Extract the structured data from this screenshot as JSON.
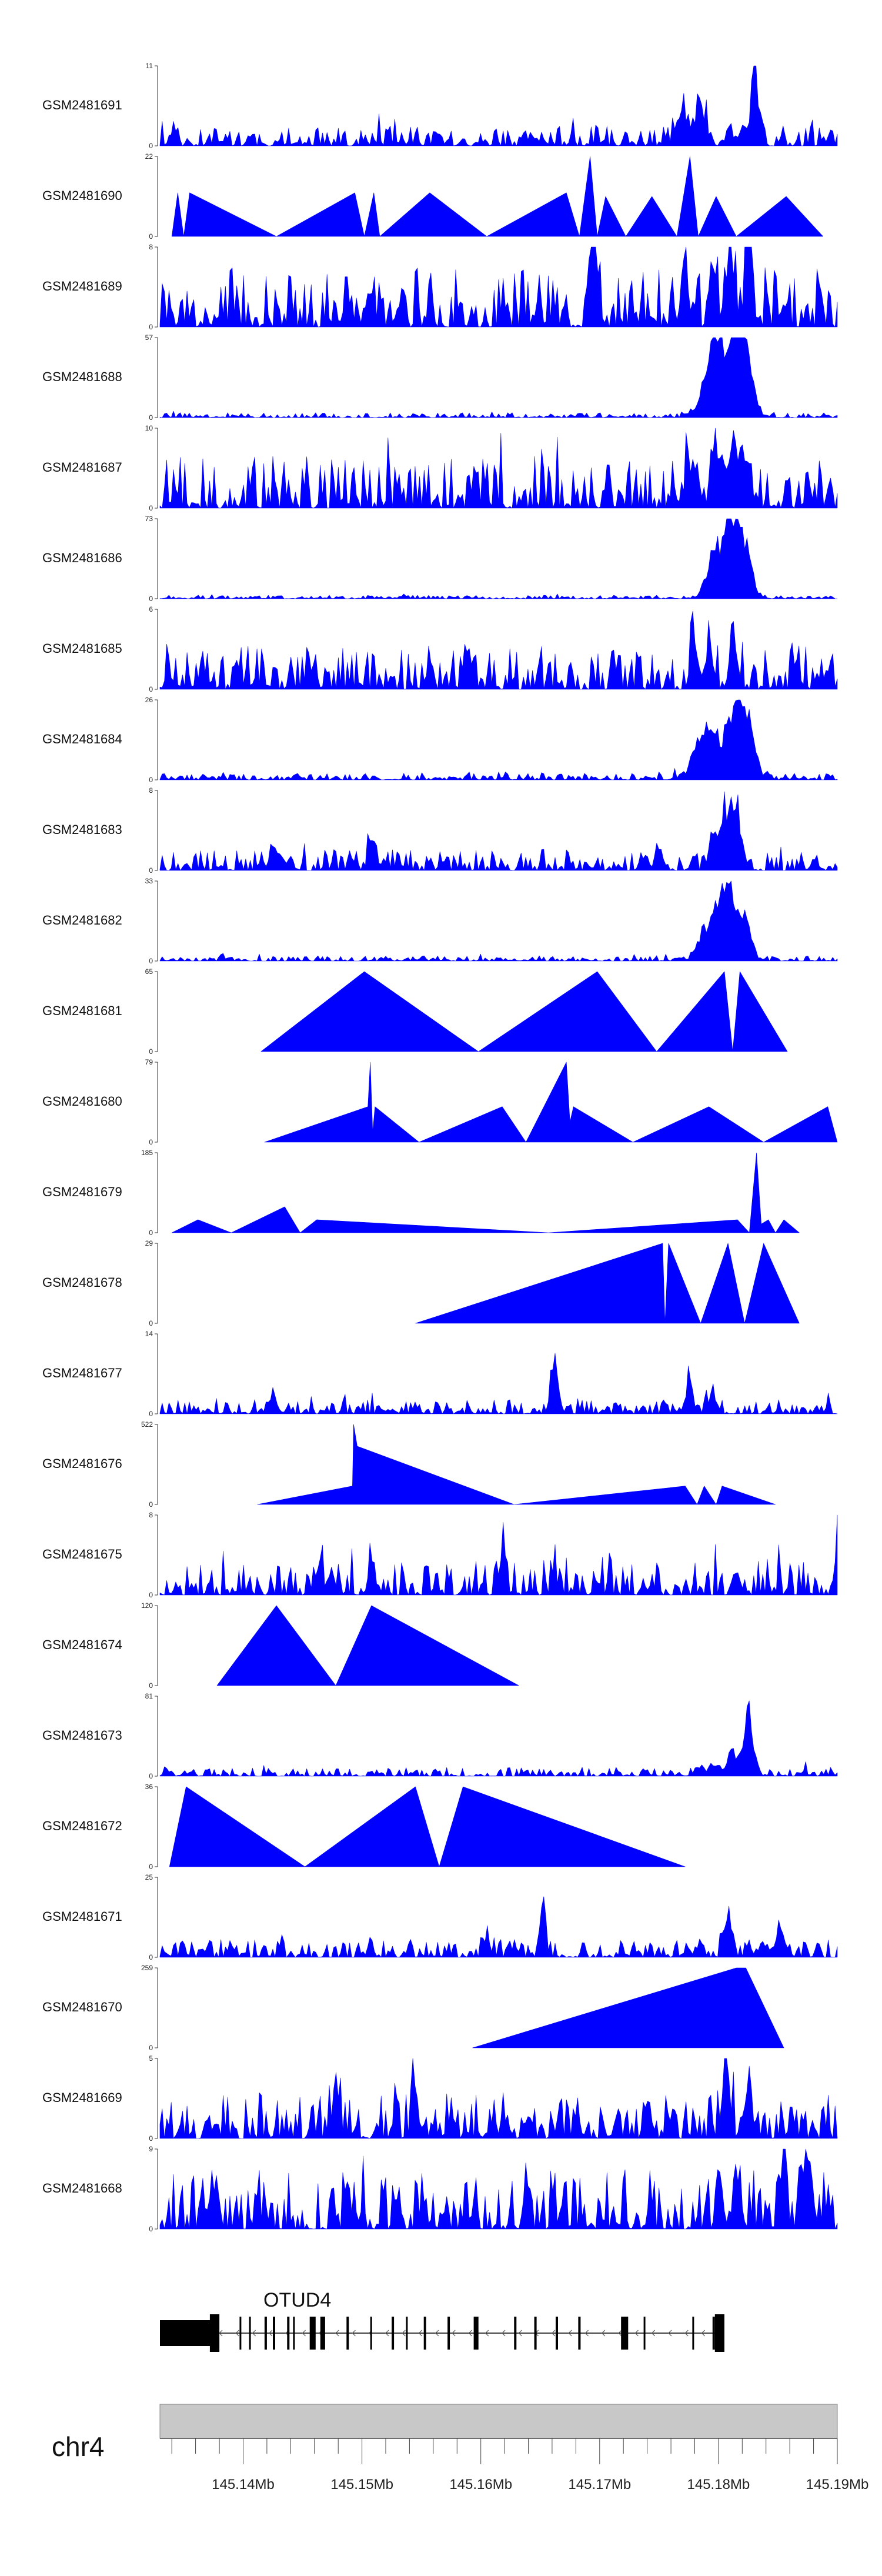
{
  "colors": {
    "signal": "#0000ff",
    "ideogram": "#c8c8c8",
    "gene": "#000000"
  },
  "chart_data": {
    "type": "area",
    "title": "",
    "xlabel": "",
    "ylabel": "",
    "chromosome": "chr4",
    "xlim_mb": [
      145.133,
      145.19
    ],
    "x_ticks_labeled": [
      {
        "mb": 145.14,
        "label": "145.14Mb"
      },
      {
        "mb": 145.15,
        "label": "145.15Mb"
      },
      {
        "mb": 145.16,
        "label": "145.16Mb"
      },
      {
        "mb": 145.17,
        "label": "145.17Mb"
      },
      {
        "mb": 145.18,
        "label": "145.18Mb"
      },
      {
        "mb": 145.19,
        "label": "145.19Mb"
      }
    ],
    "gene": {
      "name": "OTUD4",
      "strand": "-",
      "start_mb": 145.133,
      "end_mb": 145.18,
      "exons_mb": [
        [
          145.133,
          145.1375
        ],
        [
          145.1372,
          145.138
        ],
        [
          145.1397,
          145.1398
        ],
        [
          145.1405,
          145.1406
        ],
        [
          145.1418,
          145.142
        ],
        [
          145.1425,
          145.1427
        ],
        [
          145.1437,
          145.1439
        ],
        [
          145.1442,
          145.1443
        ],
        [
          145.1456,
          145.1461
        ],
        [
          145.1465,
          145.1469
        ],
        [
          145.1487,
          145.1489
        ],
        [
          145.1507,
          145.1508
        ],
        [
          145.1525,
          145.1527
        ],
        [
          145.1537,
          145.1538
        ],
        [
          145.1552,
          145.1554
        ],
        [
          145.1572,
          145.1574
        ],
        [
          145.1594,
          145.1598
        ],
        [
          145.1628,
          145.163
        ],
        [
          145.1645,
          145.1647
        ],
        [
          145.1663,
          145.1665
        ],
        [
          145.1682,
          145.1684
        ],
        [
          145.1718,
          145.1724
        ],
        [
          145.1737,
          145.1738
        ],
        [
          145.1778,
          145.1779
        ],
        [
          145.1795,
          145.1797
        ],
        [
          145.1797,
          145.1805
        ]
      ]
    },
    "series": [
      {
        "name": "GSM2481691",
        "ymax": 11,
        "kind": "noise",
        "base": 1.6,
        "seed": 11,
        "spikes": [
          [
            145.183,
            11,
            0.00045
          ],
          [
            145.177,
            7,
            0.0005
          ],
          [
            145.1785,
            6,
            0.0006
          ]
        ]
      },
      {
        "name": "GSM2481690",
        "ymax": 22,
        "kind": "poly",
        "points": [
          [
            145.134,
            0
          ],
          [
            145.1345,
            12
          ],
          [
            145.135,
            0
          ],
          [
            145.1355,
            12
          ],
          [
            145.1428,
            0
          ],
          [
            145.1494,
            12
          ],
          [
            145.1502,
            0
          ],
          [
            145.151,
            12
          ],
          [
            145.1515,
            0
          ],
          [
            145.1557,
            12
          ],
          [
            145.1605,
            0
          ],
          [
            145.1672,
            12
          ],
          [
            145.1683,
            0
          ],
          [
            145.1692,
            22
          ],
          [
            145.1698,
            0
          ],
          [
            145.1705,
            11
          ],
          [
            145.1722,
            0
          ],
          [
            145.1744,
            11
          ],
          [
            145.1765,
            0
          ],
          [
            145.1776,
            22
          ],
          [
            145.1783,
            0
          ],
          [
            145.1798,
            11
          ],
          [
            145.1815,
            0
          ],
          [
            145.1857,
            11
          ],
          [
            145.1888,
            0
          ]
        ]
      },
      {
        "name": "GSM2481689",
        "ymax": 8,
        "kind": "noise",
        "base": 3.2,
        "seed": 21,
        "spikes": [
          [
            145.181,
            8,
            0.0004
          ],
          [
            145.1825,
            8,
            0.0005
          ],
          [
            145.1795,
            7,
            0.0004
          ],
          [
            145.1772,
            7,
            0.0004
          ],
          [
            145.1695,
            6,
            0.0004
          ]
        ]
      },
      {
        "name": "GSM2481688",
        "ymax": 57,
        "kind": "noise",
        "base": 2.0,
        "seed": 31,
        "spikes": [
          [
            145.1806,
            50,
            0.0018
          ],
          [
            145.1816,
            57,
            0.0008
          ],
          [
            145.1795,
            35,
            0.0009
          ],
          [
            145.1826,
            30,
            0.0006
          ]
        ]
      },
      {
        "name": "GSM2481687",
        "ymax": 10,
        "kind": "noise",
        "base": 3.6,
        "seed": 41,
        "spikes": [
          [
            145.1812,
            10,
            0.0006
          ],
          [
            145.1822,
            9,
            0.0005
          ],
          [
            145.1798,
            7,
            0.0005
          ],
          [
            145.1775,
            6,
            0.0004
          ]
        ]
      },
      {
        "name": "GSM2481686",
        "ymax": 73,
        "kind": "noise",
        "base": 1.8,
        "seed": 51,
        "spikes": [
          [
            145.1815,
            73,
            0.0008
          ],
          [
            145.1806,
            55,
            0.0014
          ],
          [
            145.1825,
            30,
            0.0007
          ],
          [
            145.1795,
            25,
            0.0007
          ]
        ]
      },
      {
        "name": "GSM2481685",
        "ymax": 6,
        "kind": "noise",
        "base": 1.8,
        "seed": 61,
        "spikes": [
          [
            145.1778,
            6,
            0.0003
          ],
          [
            145.1812,
            5,
            0.0004
          ],
          [
            145.1792,
            4,
            0.0004
          ]
        ]
      },
      {
        "name": "GSM2481684",
        "ymax": 26,
        "kind": "noise",
        "base": 1.2,
        "seed": 71,
        "spikes": [
          [
            145.1815,
            26,
            0.0008
          ],
          [
            145.1797,
            16,
            0.0018
          ],
          [
            145.1825,
            18,
            0.0008
          ],
          [
            145.1785,
            8,
            0.0008
          ]
        ]
      },
      {
        "name": "GSM2481683",
        "ymax": 8,
        "kind": "noise",
        "base": 1.2,
        "seed": 81,
        "spikes": [
          [
            145.1815,
            8,
            0.0006
          ],
          [
            145.1805,
            6,
            0.0005
          ],
          [
            145.1795,
            4,
            0.0005
          ],
          [
            145.1425,
            3,
            0.0004
          ],
          [
            145.1508,
            3,
            0.0004
          ]
        ]
      },
      {
        "name": "GSM2481682",
        "ymax": 33,
        "kind": "noise",
        "base": 1.2,
        "seed": 91,
        "spikes": [
          [
            145.1808,
            33,
            0.0008
          ],
          [
            145.1798,
            20,
            0.0012
          ],
          [
            145.1822,
            18,
            0.0008
          ],
          [
            145.1787,
            8,
            0.0008
          ]
        ]
      },
      {
        "name": "GSM2481681",
        "ymax": 65,
        "kind": "poly",
        "points": [
          [
            145.1415,
            0
          ],
          [
            145.1502,
            65
          ],
          [
            145.1598,
            0
          ],
          [
            145.1698,
            65
          ],
          [
            145.1748,
            0
          ],
          [
            145.1805,
            65
          ],
          [
            145.1812,
            0
          ],
          [
            145.1818,
            65
          ],
          [
            145.1858,
            0
          ]
        ]
      },
      {
        "name": "GSM2481680",
        "ymax": 79,
        "kind": "poly",
        "points": [
          [
            145.1418,
            0
          ],
          [
            145.1505,
            35
          ],
          [
            145.1507,
            79
          ],
          [
            145.1509,
            10
          ],
          [
            145.1511,
            35
          ],
          [
            145.1548,
            0
          ],
          [
            145.1618,
            35
          ],
          [
            145.1638,
            0
          ],
          [
            145.1672,
            79
          ],
          [
            145.1675,
            20
          ],
          [
            145.1678,
            35
          ],
          [
            145.1728,
            0
          ],
          [
            145.1792,
            35
          ],
          [
            145.1838,
            0
          ],
          [
            145.1892,
            35
          ],
          [
            145.19,
            0
          ]
        ]
      },
      {
        "name": "GSM2481679",
        "ymax": 185,
        "kind": "poly",
        "points": [
          [
            145.134,
            0
          ],
          [
            145.1362,
            30
          ],
          [
            145.139,
            0
          ],
          [
            145.1435,
            60
          ],
          [
            145.1448,
            0
          ],
          [
            145.1462,
            30
          ],
          [
            145.1657,
            0
          ],
          [
            145.1816,
            30
          ],
          [
            145.1826,
            0
          ],
          [
            145.1832,
            185
          ],
          [
            145.1836,
            20
          ],
          [
            145.1842,
            30
          ],
          [
            145.1848,
            0
          ],
          [
            145.1855,
            30
          ],
          [
            145.1868,
            0
          ]
        ]
      },
      {
        "name": "GSM2481678",
        "ymax": 29,
        "kind": "poly",
        "points": [
          [
            145.1545,
            0
          ],
          [
            145.1753,
            29
          ],
          [
            145.1755,
            0
          ],
          [
            145.1758,
            29
          ],
          [
            145.1785,
            0
          ],
          [
            145.1808,
            29
          ],
          [
            145.1822,
            0
          ],
          [
            145.1838,
            29
          ],
          [
            145.1868,
            0
          ]
        ]
      },
      {
        "name": "GSM2481677",
        "ymax": 14,
        "kind": "noise",
        "base": 1.4,
        "seed": 101,
        "spikes": [
          [
            145.1662,
            14,
            0.0004
          ],
          [
            145.1425,
            5,
            0.0004
          ],
          [
            145.1775,
            6,
            0.0004
          ],
          [
            145.1795,
            4,
            0.0005
          ]
        ]
      },
      {
        "name": "GSM2481676",
        "ymax": 522,
        "kind": "poly",
        "points": [
          [
            145.1412,
            0
          ],
          [
            145.1492,
            120
          ],
          [
            145.1493,
            522
          ],
          [
            145.1496,
            380
          ],
          [
            145.1628,
            0
          ],
          [
            145.1772,
            120
          ],
          [
            145.1782,
            0
          ],
          [
            145.1788,
            120
          ],
          [
            145.1798,
            0
          ],
          [
            145.1803,
            120
          ],
          [
            145.1848,
            0
          ]
        ]
      },
      {
        "name": "GSM2481675",
        "ymax": 8,
        "kind": "noise",
        "base": 2.0,
        "seed": 111,
        "spikes": [
          [
            145.19,
            8,
            0.0003
          ],
          [
            145.1618,
            6,
            0.0003
          ],
          [
            145.1508,
            5,
            0.0003
          ],
          [
            145.1465,
            5,
            0.0003
          ]
        ]
      },
      {
        "name": "GSM2481674",
        "ymax": 120,
        "kind": "poly",
        "points": [
          [
            145.1378,
            0
          ],
          [
            145.1428,
            120
          ],
          [
            145.1478,
            0
          ],
          [
            145.1508,
            120
          ],
          [
            145.1632,
            0
          ]
        ]
      },
      {
        "name": "GSM2481673",
        "ymax": 81,
        "kind": "noise",
        "base": 5.0,
        "seed": 121,
        "spikes": [
          [
            145.1825,
            81,
            0.0005
          ],
          [
            145.1812,
            30,
            0.0006
          ],
          [
            145.1798,
            14,
            0.0005
          ],
          [
            145.1785,
            10,
            0.0006
          ]
        ]
      },
      {
        "name": "GSM2481672",
        "ymax": 36,
        "kind": "poly",
        "points": [
          [
            145.1338,
            0
          ],
          [
            145.1352,
            36
          ],
          [
            145.1452,
            0
          ],
          [
            145.1545,
            36
          ],
          [
            145.1565,
            0
          ],
          [
            145.1585,
            36
          ],
          [
            145.1772,
            0
          ]
        ]
      },
      {
        "name": "GSM2481671",
        "ymax": 25,
        "kind": "noise",
        "base": 3.2,
        "seed": 131,
        "spikes": [
          [
            145.1652,
            25,
            0.0003
          ],
          [
            145.1808,
            16,
            0.0004
          ],
          [
            145.1852,
            13,
            0.0004
          ],
          [
            145.1605,
            7,
            0.0004
          ]
        ]
      },
      {
        "name": "GSM2481670",
        "ymax": 259,
        "kind": "poly",
        "points": [
          [
            145.1593,
            0
          ],
          [
            145.1815,
            259
          ],
          [
            145.1823,
            259
          ],
          [
            145.1855,
            0
          ]
        ]
      },
      {
        "name": "GSM2481669",
        "ymax": 5,
        "kind": "noise",
        "base": 1.6,
        "seed": 141,
        "spikes": [
          [
            145.1805,
            5,
            0.0004
          ],
          [
            145.1478,
            4,
            0.0004
          ],
          [
            145.1545,
            3,
            0.0004
          ],
          [
            145.1825,
            3.5,
            0.0005
          ]
        ]
      },
      {
        "name": "GSM2481668",
        "ymax": 9,
        "kind": "noise",
        "base": 3.8,
        "seed": 151,
        "spikes": [
          [
            145.1875,
            9,
            0.0004
          ],
          [
            145.1855,
            7,
            0.0004
          ],
          [
            145.1638,
            5,
            0.0003
          ],
          [
            145.1815,
            5,
            0.0004
          ]
        ]
      }
    ]
  }
}
